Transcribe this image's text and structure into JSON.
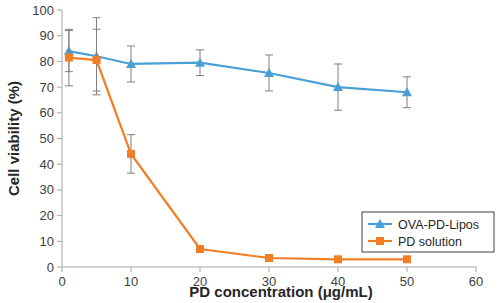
{
  "chart_data": {
    "type": "line",
    "x_label": "PD concentration (μg/mL)",
    "y_label": "Cell viability (%)",
    "x": [
      1,
      5,
      10,
      20,
      30,
      40,
      50
    ],
    "xlim": [
      0,
      60
    ],
    "xticks": [
      0,
      10,
      20,
      30,
      40,
      50,
      60
    ],
    "ylim": [
      0,
      100
    ],
    "yticks": [
      0,
      10,
      20,
      30,
      40,
      50,
      60,
      70,
      80,
      90,
      100
    ],
    "grid": false,
    "legend": "lower right",
    "series": [
      {
        "name": "OVA-PD-Lipos",
        "color": "#4a9fd4",
        "marker": "triangle",
        "values": [
          84,
          82,
          79,
          79.5,
          75.5,
          70,
          68
        ],
        "errors": [
          8,
          15,
          7,
          5,
          7,
          9,
          6
        ]
      },
      {
        "name": "PD solution",
        "color": "#f07e26",
        "marker": "square",
        "values": [
          81.5,
          80.5,
          44,
          7,
          3.5,
          3,
          3
        ],
        "errors": [
          11,
          12,
          7.5,
          1,
          0.5,
          0.5,
          0.5
        ]
      }
    ]
  }
}
